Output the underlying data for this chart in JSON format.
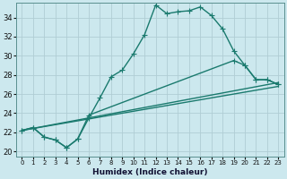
{
  "title": "",
  "xlabel": "Humidex (Indice chaleur)",
  "bg_color": "#cce8ee",
  "grid_color": "#b0cdd4",
  "line_color": "#1a7a6e",
  "xlim": [
    -0.5,
    23.5
  ],
  "ylim": [
    19.5,
    35.5
  ],
  "xticks": [
    0,
    1,
    2,
    3,
    4,
    5,
    6,
    7,
    8,
    9,
    10,
    11,
    12,
    13,
    14,
    15,
    16,
    17,
    18,
    19,
    20,
    21,
    22,
    23
  ],
  "yticks": [
    20,
    22,
    24,
    26,
    28,
    30,
    32,
    34
  ],
  "line1_x": [
    0,
    1,
    2,
    3,
    4,
    5,
    6,
    7,
    8,
    9,
    10,
    11,
    12,
    13,
    14,
    15,
    16,
    17,
    18,
    19,
    20,
    21,
    22,
    23
  ],
  "line1_y": [
    22.2,
    22.5,
    21.5,
    21.2,
    20.4,
    21.3,
    23.5,
    25.6,
    27.8,
    28.5,
    30.2,
    32.2,
    35.3,
    34.4,
    34.6,
    34.7,
    35.1,
    34.2,
    32.8,
    30.5,
    29.0,
    27.5,
    27.5,
    27.0
  ],
  "line2_x": [
    0,
    1,
    2,
    3,
    4,
    5,
    6,
    19,
    20,
    21,
    22,
    23
  ],
  "line2_y": [
    22.2,
    22.5,
    21.5,
    21.2,
    20.4,
    21.3,
    23.8,
    29.5,
    29.0,
    27.5,
    27.5,
    27.0
  ],
  "line3_x": [
    0,
    23
  ],
  "line3_y": [
    22.2,
    26.8
  ],
  "line4_x": [
    0,
    23
  ],
  "line4_y": [
    22.2,
    27.2
  ],
  "marker_size": 2.5,
  "line_width": 1.0
}
